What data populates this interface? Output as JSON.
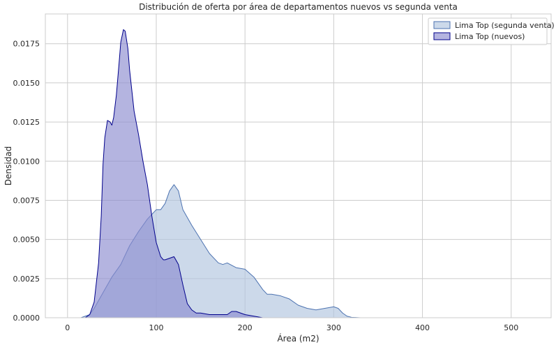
{
  "chart_data": {
    "type": "area",
    "title": "Distribución de oferta por área de departamentos nuevos vs segunda venta",
    "xlabel": "Área (m2)",
    "ylabel": "Densidad",
    "xlim": [
      -25,
      545
    ],
    "ylim": [
      0,
      0.0194
    ],
    "xticks": [
      0,
      100,
      200,
      300,
      400,
      500
    ],
    "yticks": [
      0.0,
      0.0025,
      0.005,
      0.0075,
      0.01,
      0.0125,
      0.015,
      0.0175
    ],
    "ytick_labels": [
      "0.0000",
      "0.0025",
      "0.0050",
      "0.0075",
      "0.0100",
      "0.0125",
      "0.0150",
      "0.0175"
    ],
    "grid": true,
    "legend_position": "top-right",
    "series": [
      {
        "name": "Lima Top (segunda venta)",
        "fill_color": "#b0c4de",
        "line_color": "#4c72b0",
        "x": [
          15,
          25,
          30,
          40,
          50,
          60,
          70,
          80,
          90,
          100,
          105,
          110,
          115,
          120,
          125,
          130,
          140,
          150,
          160,
          170,
          175,
          180,
          190,
          200,
          210,
          220,
          225,
          230,
          240,
          250,
          260,
          270,
          280,
          290,
          300,
          305,
          310,
          315,
          320,
          330
        ],
        "y": [
          0.0,
          0.0002,
          0.0006,
          0.0016,
          0.0026,
          0.0034,
          0.0046,
          0.0055,
          0.0063,
          0.0069,
          0.0069,
          0.0073,
          0.0081,
          0.0085,
          0.0081,
          0.0069,
          0.0059,
          0.005,
          0.0041,
          0.0035,
          0.0034,
          0.0035,
          0.0032,
          0.0031,
          0.0026,
          0.0018,
          0.0015,
          0.0015,
          0.0014,
          0.0012,
          0.0008,
          0.0006,
          0.0005,
          0.0006,
          0.0007,
          0.0006,
          0.0003,
          0.0001,
          3e-05,
          0.0
        ]
      },
      {
        "name": "Lima Top (nuevos)",
        "fill_color": "#8c8cd0",
        "line_color": "#00008b",
        "x": [
          20,
          25,
          30,
          35,
          38,
          40,
          42,
          45,
          48,
          50,
          52,
          55,
          58,
          60,
          63,
          65,
          68,
          70,
          75,
          80,
          85,
          90,
          95,
          100,
          105,
          108,
          110,
          115,
          120,
          125,
          130,
          135,
          140,
          145,
          150,
          160,
          170,
          180,
          185,
          190,
          200,
          210,
          220
        ],
        "y": [
          0.0,
          0.0002,
          0.001,
          0.0035,
          0.0065,
          0.0098,
          0.0115,
          0.0126,
          0.0125,
          0.0123,
          0.0128,
          0.0142,
          0.0162,
          0.0176,
          0.0184,
          0.0183,
          0.0172,
          0.0158,
          0.0132,
          0.0117,
          0.01,
          0.0085,
          0.0065,
          0.0048,
          0.0039,
          0.0037,
          0.0037,
          0.0038,
          0.0039,
          0.0034,
          0.0021,
          0.0009,
          0.0005,
          0.0003,
          0.0003,
          0.0002,
          0.0002,
          0.0002,
          0.0004,
          0.0004,
          0.0002,
          0.0001,
          0.0
        ]
      }
    ]
  }
}
